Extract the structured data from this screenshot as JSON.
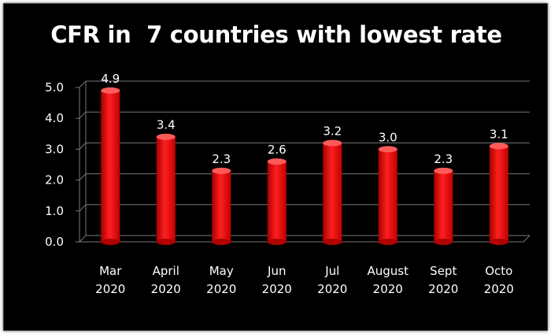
{
  "chart_data": {
    "type": "bar",
    "title": "CFR in  7 countries with lowest rate",
    "categories": [
      [
        "Mar",
        "2020"
      ],
      [
        "April",
        "2020"
      ],
      [
        "May",
        "2020"
      ],
      [
        "Jun",
        "2020"
      ],
      [
        "Jul",
        "2020"
      ],
      [
        "August",
        "2020"
      ],
      [
        "Sept",
        "2020"
      ],
      [
        "Octo",
        "2020"
      ]
    ],
    "values": [
      4.9,
      3.4,
      2.3,
      2.6,
      3.2,
      3.0,
      2.3,
      3.1
    ],
    "value_labels": [
      "4.9",
      "3.4",
      "2.3",
      "2.6",
      "3.2",
      "3.0",
      "2.3",
      "3.1"
    ],
    "yticks": [
      "0.0",
      "1.0",
      "2.0",
      "3.0",
      "4.0",
      "5.0"
    ],
    "ylim": [
      0,
      5
    ],
    "grid": true,
    "legend": "none",
    "colors": {
      "bar": "#ff1a1a",
      "bar_dark": "#b00000",
      "bar_top": "#ff5a5a",
      "background": "#000000",
      "grid": "#777777",
      "text": "#ffffff"
    }
  }
}
